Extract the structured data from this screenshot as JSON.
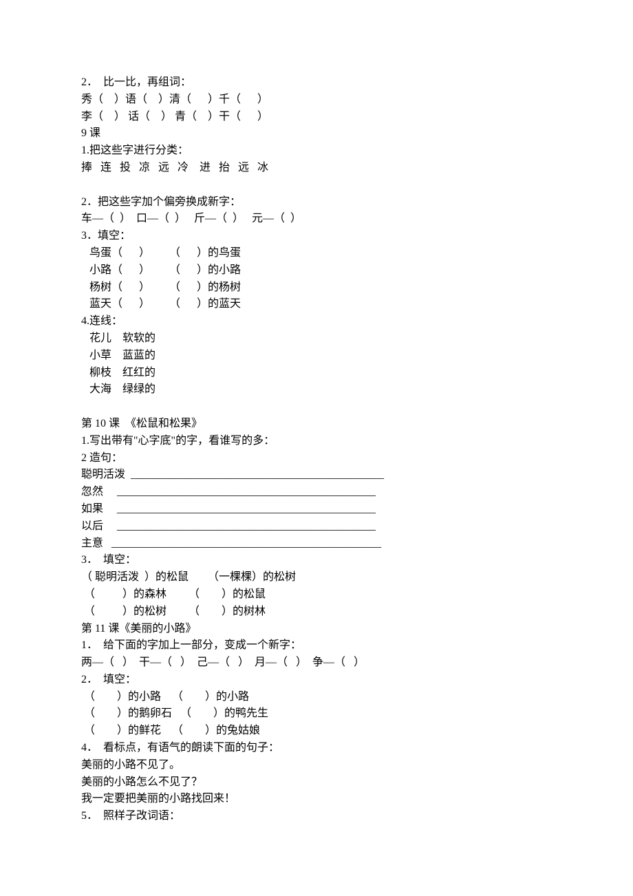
{
  "section2": {
    "title": "2．  比一比，再组词：",
    "row1": "秀（    ）语（    ）清（      ）千（      ）",
    "row2": "李（    ） 话（    ） 青（    ）干（      ）"
  },
  "lesson9": {
    "header": "9 课",
    "q1": {
      "title": "1.把这些字进行分类：",
      "chars": "捧   连   投   凉   远   冷    进   抬   远   冰"
    },
    "q2": {
      "title": "2．把这些字加个偏旁换成新字：",
      "row": "车—（  ）  口—（  ）   斤—（  ）   元—（  ）"
    },
    "q3": {
      "title": "3．填空：",
      "r1": "   鸟蛋（      ）       （      ）的鸟蛋",
      "r2": "   小路（      ）       （      ）的小路",
      "r3": "   杨树（      ）       （      ）的杨树",
      "r4": "   蓝天（      ）       （      ）的蓝天"
    },
    "q4": {
      "title": "4.连线：",
      "r1": "   花儿    软软的",
      "r2": "   小草    蓝蓝的",
      "r3": "   柳枝    红红的",
      "r4": "   大海    绿绿的"
    }
  },
  "lesson10": {
    "header": "第 10 课  《松鼠和松果》",
    "q1": "1.写出带有\"心字底\"的字，看谁写的多：",
    "q2": {
      "title": "2 造句：",
      "r1": "聪明活泼  ______________________________________________",
      "r2": "忽然     _______________________________________________",
      "r3": "如果     _______________________________________________",
      "r4": "以后     _______________________________________________",
      "r5": "主意   _________________________________________________"
    },
    "q3": {
      "title": "3．  填空：",
      "r1": "（ 聪明活泼  ）的松鼠       （一棵棵）的松树",
      "r2": " （          ）的森林        （        ）的松鼠",
      "r3": " （          ）的松树        （        ）的树林"
    }
  },
  "lesson11": {
    "header": "第 11 课《美丽的小路》",
    "q1": {
      "title": "1．  给下面的字加上一部分，变成一个新字：",
      "row": "两—（   ）  干—（   ）  己—（   ）  月—（   ）  争—（   ）"
    },
    "q2": {
      "title": "2．  填空：",
      "r1": " （        ）的小路    （        ）的小路",
      "r2": " （        ）的鹅卵石   （        ）的鸭先生",
      "r3": " （        ）的鲜花    （        ）的兔姑娘"
    },
    "q4": {
      "title": "4．  看标点，有语气的朗读下面的句子：",
      "r1": "美丽的小路不见了。",
      "r2": "美丽的小路怎么不见了？",
      "r3": "我一定要把美丽的小路找回来！"
    },
    "q5": "5．  照样子改词语："
  }
}
